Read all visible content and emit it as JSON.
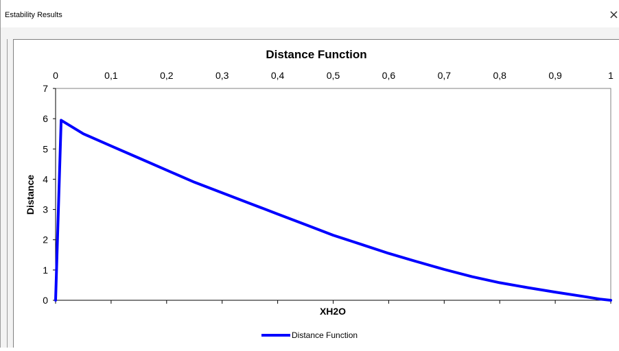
{
  "window": {
    "title": "Estability Results",
    "close_glyph": "×"
  },
  "colors": {
    "series": "#0000ff",
    "axis": "#000000",
    "plot_border": "#808080"
  },
  "chart_data": {
    "type": "line",
    "title": "Distance Function",
    "xlabel": "XH2O",
    "ylabel": "Distance",
    "xlim": [
      0,
      1
    ],
    "ylim": [
      0,
      7
    ],
    "x_ticks": [
      "0",
      "0,1",
      "0,2",
      "0,3",
      "0,4",
      "0,5",
      "0,6",
      "0,7",
      "0,8",
      "0,9",
      "1"
    ],
    "y_ticks": [
      "0",
      "1",
      "2",
      "3",
      "4",
      "5",
      "6",
      "7"
    ],
    "x_axis_position": "top",
    "grid": false,
    "legend": "bottom",
    "series": [
      {
        "name": "Distance Function",
        "x": [
          0,
          0.01,
          0.05,
          0.1,
          0.15,
          0.2,
          0.25,
          0.3,
          0.35,
          0.4,
          0.45,
          0.5,
          0.55,
          0.6,
          0.65,
          0.7,
          0.75,
          0.8,
          0.85,
          0.9,
          0.95,
          0.98,
          1.0
        ],
        "y": [
          0,
          5.95,
          5.5,
          5.1,
          4.7,
          4.3,
          3.9,
          3.55,
          3.2,
          2.85,
          2.5,
          2.15,
          1.85,
          1.55,
          1.28,
          1.02,
          0.78,
          0.58,
          0.42,
          0.27,
          0.13,
          0.04,
          0.0
        ]
      }
    ]
  }
}
